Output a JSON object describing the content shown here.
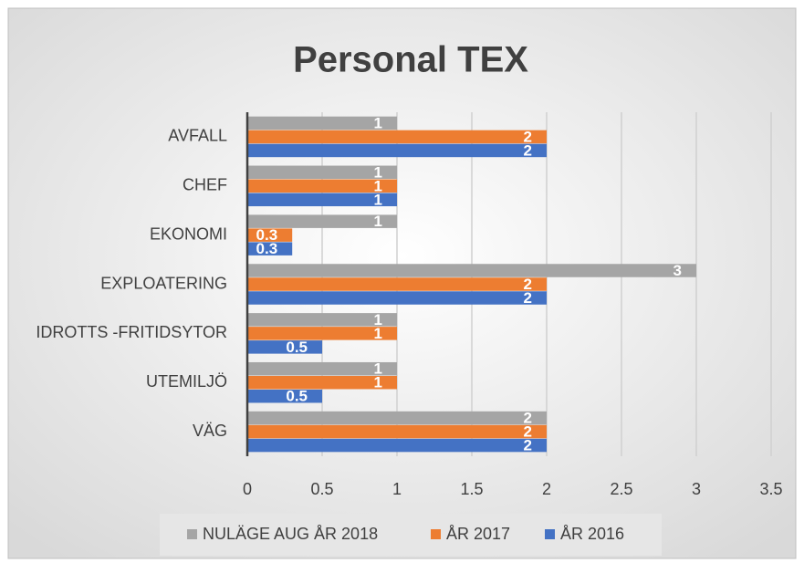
{
  "chart_data": {
    "type": "hbar",
    "title": "Personal TEX",
    "categories": [
      "AVFALL",
      "CHEF",
      "EKONOMI",
      "EXPLOATERING",
      "IDROTTS -FRITIDSYTOR",
      "UTEMILJÖ",
      "VÄG"
    ],
    "series": [
      {
        "name": "NULÄGE AUG ÅR 2018",
        "color": "#a5a5a5",
        "values": [
          1,
          1,
          1,
          3,
          1,
          1,
          2
        ]
      },
      {
        "name": "ÅR 2017",
        "color": "#ed7d31",
        "values": [
          2,
          1,
          0.3,
          2,
          1,
          1,
          2
        ]
      },
      {
        "name": "ÅR 2016",
        "color": "#4472c4",
        "values": [
          2,
          1,
          0.3,
          2,
          0.5,
          0.5,
          2
        ]
      }
    ],
    "xlim": [
      0,
      3.5
    ],
    "xticks": [
      0,
      0.5,
      1,
      1.5,
      2,
      2.5,
      3,
      3.5
    ],
    "grid": true,
    "legend": "bottom"
  }
}
